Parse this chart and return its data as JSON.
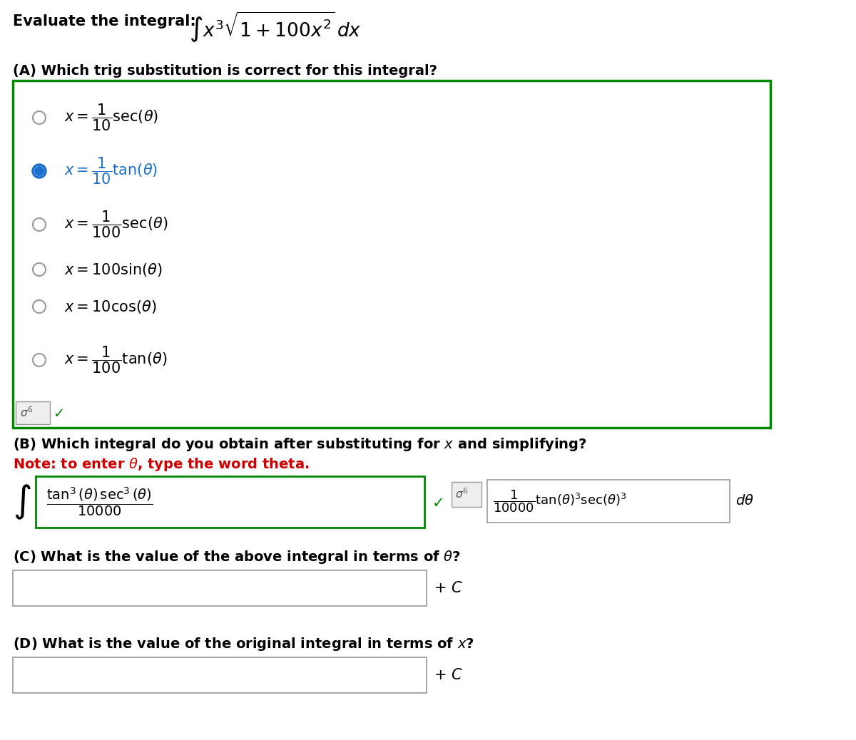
{
  "bg_color": "#ffffff",
  "text_color": "#000000",
  "selected_color": "#1a6fcc",
  "note_color": "#cc0000",
  "check_color": "#008800",
  "box_A_border": "#008800",
  "gray_border": "#999999",
  "light_gray_fill": "#eeeeee",
  "title_text": "Evaluate the integral:",
  "integral_text": "$\\int x^3\\sqrt{1 + 100x^2}\\,dx$",
  "partA_text": "(A) Which trig substitution is correct for this integral?",
  "partB_text": "(B) Which integral do you obtain after substituting for $x$ and simplifying?",
  "partB_note": "Note: to enter $\\theta$, type the word theta.",
  "partC_text": "(C) What is the value of the above integral in terms of $\\theta$?",
  "partD_text": "(D) What is the value of the original integral in terms of $x$?",
  "options": [
    {
      "formula": "$x = \\dfrac{1}{10}\\mathrm{sec}(\\theta)$",
      "selected": false,
      "has_frac": true
    },
    {
      "formula": "$x = \\dfrac{1}{10}\\mathrm{tan}(\\theta)$",
      "selected": true,
      "has_frac": true
    },
    {
      "formula": "$x = \\dfrac{1}{100}\\mathrm{sec}(\\theta)$",
      "selected": false,
      "has_frac": true
    },
    {
      "formula": "$x = 100\\sin(\\theta)$",
      "selected": false,
      "has_frac": false
    },
    {
      "formula": "$x = 10\\cos(\\theta)$",
      "selected": false,
      "has_frac": false
    },
    {
      "formula": "$x = \\dfrac{1}{100}\\mathrm{tan}(\\theta)$",
      "selected": false,
      "has_frac": true
    }
  ],
  "fig_width": 12.0,
  "fig_height": 10.38,
  "dpi": 100
}
